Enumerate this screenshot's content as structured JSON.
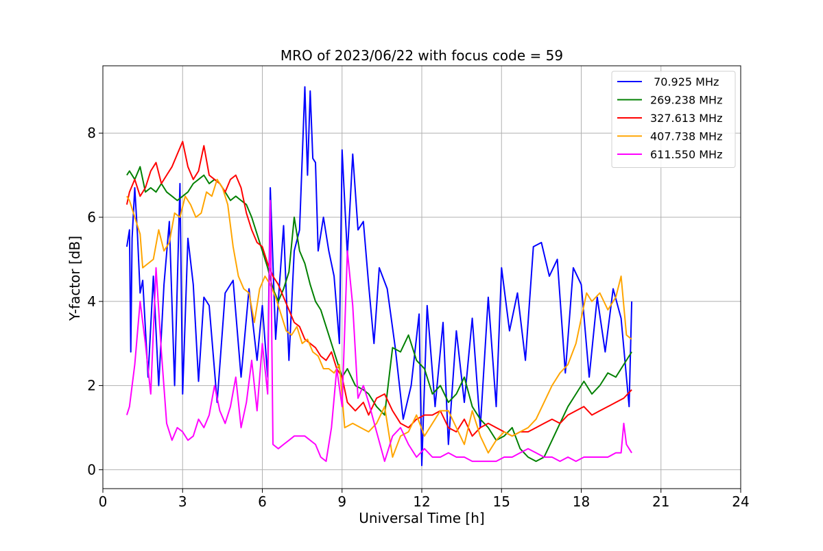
{
  "chart_data": {
    "type": "line",
    "title": "MRO of 2023/06/22 with focus code = 59",
    "xlabel": "Universal Time [h]",
    "ylabel": "Y-factor [dB]",
    "xlim": [
      0,
      24
    ],
    "ylim": [
      -0.45,
      9.6
    ],
    "xticks": [
      0,
      3,
      6,
      9,
      12,
      15,
      18,
      21,
      24
    ],
    "yticks": [
      0,
      2,
      4,
      6,
      8
    ],
    "grid": true,
    "legend_position": "top-right",
    "series": [
      {
        "name": " 70.925 MHz",
        "color": "#0000ff",
        "x": [
          0.9,
          1.0,
          1.05,
          1.1,
          1.2,
          1.3,
          1.4,
          1.5,
          1.7,
          1.9,
          2.1,
          2.3,
          2.5,
          2.7,
          2.9,
          3.0,
          3.2,
          3.4,
          3.6,
          3.8,
          4.0,
          4.3,
          4.6,
          4.9,
          5.2,
          5.5,
          5.8,
          6.0,
          6.2,
          6.3,
          6.5,
          6.8,
          7.0,
          7.2,
          7.4,
          7.6,
          7.7,
          7.8,
          7.9,
          8.0,
          8.1,
          8.3,
          8.5,
          8.7,
          8.9,
          9.0,
          9.2,
          9.4,
          9.6,
          9.8,
          10.0,
          10.2,
          10.4,
          10.7,
          11.0,
          11.3,
          11.6,
          11.9,
          12.0,
          12.2,
          12.5,
          12.8,
          13.0,
          13.3,
          13.6,
          13.9,
          14.2,
          14.5,
          14.8,
          15.0,
          15.3,
          15.6,
          15.9,
          16.2,
          16.5,
          16.8,
          17.1,
          17.4,
          17.7,
          18.0,
          18.3,
          18.6,
          18.9,
          19.2,
          19.5,
          19.8,
          19.9
        ],
        "values": [
          5.3,
          5.7,
          2.8,
          5.5,
          6.7,
          5.6,
          4.2,
          4.5,
          2.2,
          4.6,
          2.0,
          4.4,
          5.9,
          2.0,
          6.8,
          1.8,
          5.5,
          4.4,
          2.1,
          4.1,
          3.9,
          1.6,
          4.2,
          4.5,
          2.2,
          4.3,
          2.6,
          3.9,
          2.2,
          6.7,
          3.1,
          5.8,
          2.6,
          5.2,
          5.7,
          9.1,
          7.0,
          9.0,
          7.4,
          7.3,
          5.2,
          6.0,
          5.2,
          4.6,
          3.0,
          7.6,
          5.1,
          7.5,
          5.7,
          5.9,
          4.4,
          3.0,
          4.8,
          4.3,
          2.9,
          1.2,
          2.0,
          3.7,
          0.1,
          3.9,
          1.5,
          3.5,
          0.6,
          3.3,
          1.6,
          3.6,
          1.0,
          4.1,
          1.5,
          4.8,
          3.3,
          4.2,
          2.6,
          5.3,
          5.4,
          4.6,
          5.0,
          2.3,
          4.8,
          4.4,
          2.2,
          4.1,
          2.8,
          4.3,
          3.6,
          1.5,
          4.0
        ]
      },
      {
        "name": "269.238 MHz",
        "color": "#008000",
        "x": [
          0.9,
          1.0,
          1.2,
          1.4,
          1.6,
          1.8,
          2.0,
          2.2,
          2.4,
          2.6,
          2.8,
          3.0,
          3.2,
          3.4,
          3.6,
          3.8,
          4.0,
          4.2,
          4.4,
          4.6,
          4.8,
          5.0,
          5.2,
          5.4,
          5.6,
          5.8,
          6.0,
          6.2,
          6.4,
          6.6,
          6.8,
          7.0,
          7.2,
          7.4,
          7.6,
          7.8,
          8.0,
          8.2,
          8.4,
          8.6,
          8.8,
          9.0,
          9.2,
          9.5,
          9.8,
          10.0,
          10.3,
          10.6,
          10.9,
          11.2,
          11.5,
          11.8,
          12.1,
          12.4,
          12.7,
          13.0,
          13.3,
          13.6,
          13.9,
          14.2,
          14.5,
          14.8,
          15.1,
          15.4,
          15.7,
          16.0,
          16.3,
          16.6,
          16.9,
          17.2,
          17.5,
          17.8,
          18.1,
          18.4,
          18.7,
          19.0,
          19.3,
          19.6,
          19.9
        ],
        "values": [
          7.0,
          7.1,
          6.9,
          7.2,
          6.6,
          6.7,
          6.6,
          6.8,
          6.6,
          6.5,
          6.4,
          6.5,
          6.6,
          6.8,
          6.9,
          7.0,
          6.8,
          6.9,
          6.8,
          6.6,
          6.4,
          6.5,
          6.4,
          6.3,
          6.0,
          5.6,
          5.2,
          4.8,
          4.3,
          4.0,
          4.3,
          4.7,
          6.0,
          5.2,
          4.9,
          4.4,
          4.0,
          3.8,
          3.4,
          3.0,
          2.6,
          2.2,
          2.4,
          2.0,
          1.9,
          1.8,
          1.5,
          1.3,
          2.9,
          2.8,
          3.2,
          2.6,
          2.4,
          1.8,
          2.0,
          1.6,
          1.8,
          2.2,
          1.5,
          1.2,
          1.0,
          0.7,
          0.8,
          1.0,
          0.5,
          0.3,
          0.2,
          0.3,
          0.7,
          1.1,
          1.5,
          1.8,
          2.1,
          1.8,
          2.0,
          2.3,
          2.2,
          2.5,
          2.8
        ]
      },
      {
        "name": "327.613 MHz",
        "color": "#ff0000",
        "x": [
          0.9,
          1.0,
          1.2,
          1.4,
          1.6,
          1.8,
          2.0,
          2.2,
          2.4,
          2.6,
          2.8,
          3.0,
          3.2,
          3.4,
          3.6,
          3.8,
          4.0,
          4.2,
          4.4,
          4.6,
          4.8,
          5.0,
          5.2,
          5.4,
          5.6,
          5.8,
          6.0,
          6.2,
          6.4,
          6.6,
          6.8,
          7.0,
          7.2,
          7.4,
          7.6,
          7.8,
          8.0,
          8.2,
          8.4,
          8.6,
          8.8,
          9.0,
          9.2,
          9.5,
          9.8,
          10.0,
          10.3,
          10.6,
          10.9,
          11.2,
          11.5,
          11.8,
          12.1,
          12.4,
          12.7,
          13.0,
          13.3,
          13.6,
          13.9,
          14.2,
          14.5,
          14.8,
          15.1,
          15.4,
          15.7,
          16.0,
          16.3,
          16.6,
          16.9,
          17.2,
          17.5,
          17.8,
          18.1,
          18.4,
          18.7,
          19.0,
          19.3,
          19.6,
          19.9
        ],
        "values": [
          6.3,
          6.6,
          6.9,
          6.5,
          6.7,
          7.1,
          7.3,
          6.8,
          7.0,
          7.2,
          7.5,
          7.8,
          7.2,
          6.9,
          7.1,
          7.7,
          7.0,
          6.9,
          6.8,
          6.6,
          6.9,
          7.0,
          6.7,
          6.1,
          5.7,
          5.4,
          5.3,
          4.9,
          4.6,
          4.4,
          4.1,
          3.8,
          3.5,
          3.4,
          3.1,
          3.0,
          2.9,
          2.7,
          2.6,
          2.8,
          2.4,
          2.2,
          1.6,
          1.4,
          1.6,
          1.3,
          1.7,
          1.8,
          1.4,
          1.1,
          1.0,
          1.2,
          1.3,
          1.3,
          1.4,
          1.0,
          0.9,
          1.2,
          0.8,
          1.0,
          1.1,
          1.0,
          0.9,
          0.8,
          0.9,
          0.9,
          1.0,
          1.1,
          1.2,
          1.1,
          1.3,
          1.4,
          1.5,
          1.3,
          1.4,
          1.5,
          1.6,
          1.7,
          1.9
        ]
      },
      {
        "name": "407.738 MHz",
        "color": "#ffa500",
        "x": [
          0.9,
          1.0,
          1.2,
          1.4,
          1.5,
          1.7,
          1.9,
          2.1,
          2.3,
          2.5,
          2.7,
          2.9,
          3.1,
          3.3,
          3.5,
          3.7,
          3.9,
          4.1,
          4.3,
          4.5,
          4.7,
          4.9,
          5.1,
          5.3,
          5.5,
          5.7,
          5.9,
          6.1,
          6.3,
          6.5,
          6.7,
          6.9,
          7.1,
          7.3,
          7.5,
          7.7,
          7.9,
          8.1,
          8.3,
          8.5,
          8.7,
          8.9,
          9.1,
          9.4,
          9.7,
          10.0,
          10.3,
          10.6,
          10.9,
          11.2,
          11.5,
          11.8,
          12.1,
          12.4,
          12.7,
          13.0,
          13.3,
          13.6,
          13.9,
          14.2,
          14.5,
          14.8,
          15.1,
          15.4,
          15.7,
          16.0,
          16.3,
          16.6,
          16.9,
          17.2,
          17.5,
          17.8,
          18.0,
          18.2,
          18.4,
          18.7,
          19.0,
          19.3,
          19.5,
          19.7,
          19.9
        ],
        "values": [
          6.5,
          6.4,
          6.0,
          5.6,
          4.8,
          4.9,
          5.0,
          5.7,
          5.2,
          5.4,
          6.1,
          6.0,
          6.5,
          6.3,
          6.0,
          6.1,
          6.6,
          6.5,
          6.9,
          6.7,
          6.3,
          5.3,
          4.6,
          4.3,
          4.2,
          3.5,
          4.3,
          4.6,
          4.4,
          4.1,
          3.7,
          3.3,
          3.2,
          3.4,
          3.0,
          3.1,
          2.8,
          2.7,
          2.4,
          2.4,
          2.3,
          2.5,
          1.0,
          1.1,
          1.0,
          0.9,
          1.1,
          1.5,
          0.3,
          0.8,
          0.9,
          1.3,
          0.8,
          1.1,
          1.4,
          1.4,
          1.0,
          0.6,
          1.4,
          0.8,
          0.4,
          0.7,
          0.9,
          0.8,
          0.9,
          1.0,
          1.2,
          1.6,
          2.0,
          2.3,
          2.5,
          3.0,
          3.6,
          4.2,
          4.0,
          4.2,
          3.8,
          4.1,
          4.6,
          3.2,
          3.1
        ]
      },
      {
        "name": "611.550 MHz",
        "color": "#ff00ff",
        "x": [
          0.9,
          1.0,
          1.2,
          1.4,
          1.6,
          1.8,
          2.0,
          2.2,
          2.4,
          2.6,
          2.8,
          3.0,
          3.2,
          3.4,
          3.6,
          3.8,
          4.0,
          4.2,
          4.4,
          4.6,
          4.8,
          5.0,
          5.2,
          5.4,
          5.6,
          5.8,
          6.0,
          6.2,
          6.3,
          6.4,
          6.6,
          6.8,
          7.0,
          7.2,
          7.4,
          7.6,
          7.8,
          8.0,
          8.2,
          8.4,
          8.6,
          8.8,
          9.0,
          9.2,
          9.4,
          9.6,
          9.8,
          10.0,
          10.3,
          10.6,
          10.9,
          11.2,
          11.5,
          11.8,
          12.1,
          12.4,
          12.7,
          13.0,
          13.3,
          13.6,
          13.9,
          14.2,
          14.5,
          14.8,
          15.1,
          15.4,
          15.7,
          16.0,
          16.3,
          16.6,
          16.9,
          17.2,
          17.5,
          17.8,
          18.1,
          18.4,
          18.7,
          19.0,
          19.3,
          19.5,
          19.6,
          19.7,
          19.9
        ],
        "values": [
          1.3,
          1.5,
          2.5,
          4.0,
          3.0,
          1.8,
          4.8,
          2.8,
          1.1,
          0.7,
          1.0,
          0.9,
          0.7,
          0.8,
          1.2,
          1.0,
          1.3,
          2.0,
          1.4,
          1.1,
          1.5,
          2.2,
          1.0,
          1.6,
          2.6,
          1.4,
          3.0,
          1.8,
          6.4,
          0.6,
          0.5,
          0.6,
          0.7,
          0.8,
          0.8,
          0.8,
          0.7,
          0.6,
          0.3,
          0.2,
          1.0,
          2.4,
          1.5,
          5.2,
          3.9,
          1.7,
          2.0,
          1.6,
          0.9,
          0.2,
          0.8,
          1.0,
          0.6,
          0.3,
          0.5,
          0.3,
          0.3,
          0.4,
          0.3,
          0.3,
          0.2,
          0.2,
          0.2,
          0.2,
          0.3,
          0.3,
          0.4,
          0.5,
          0.4,
          0.3,
          0.3,
          0.2,
          0.3,
          0.2,
          0.3,
          0.3,
          0.3,
          0.3,
          0.4,
          0.4,
          1.1,
          0.6,
          0.4
        ]
      }
    ]
  }
}
